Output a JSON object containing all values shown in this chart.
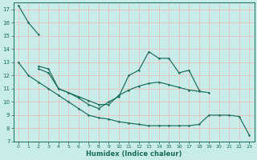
{
  "xlabel": "Humidex (Indice chaleur)",
  "background_color": "#c8ece8",
  "grid_color": "#f0b8b8",
  "line_color": "#1a6b5a",
  "xlim_min": -0.5,
  "xlim_max": 23.5,
  "ylim_min": 7,
  "ylim_max": 17.5,
  "yticks": [
    7,
    8,
    9,
    10,
    11,
    12,
    13,
    14,
    15,
    16,
    17
  ],
  "xticks": [
    0,
    1,
    2,
    3,
    4,
    5,
    6,
    7,
    8,
    9,
    10,
    11,
    12,
    13,
    14,
    15,
    16,
    17,
    18,
    19,
    20,
    21,
    22,
    23
  ],
  "series": [
    {
      "x": [
        0,
        1,
        2
      ],
      "y": [
        17.3,
        16.0,
        15.1
      ]
    },
    {
      "x": [
        2,
        3,
        4,
        5,
        6,
        7,
        8,
        9,
        10,
        11,
        12,
        13,
        14,
        15,
        16,
        17,
        18
      ],
      "y": [
        12.7,
        12.5,
        11.0,
        10.7,
        10.3,
        9.8,
        9.5,
        10.0,
        10.4,
        12.0,
        12.4,
        13.8,
        13.3,
        13.3,
        12.2,
        12.4,
        10.9
      ]
    },
    {
      "x": [
        2,
        3,
        4,
        5,
        6,
        7,
        8,
        9,
        10,
        11,
        12,
        13,
        14,
        15,
        16,
        17,
        18,
        19
      ],
      "y": [
        12.5,
        12.2,
        11.0,
        10.7,
        10.4,
        10.1,
        9.8,
        9.8,
        10.5,
        10.9,
        11.2,
        11.4,
        11.5,
        11.3,
        11.1,
        10.9,
        10.8,
        10.7
      ]
    },
    {
      "x": [
        0,
        1,
        2,
        3,
        4,
        5,
        6,
        7,
        8,
        9,
        10,
        11,
        12,
        13,
        14,
        15,
        16,
        17,
        18,
        19,
        20,
        21,
        22,
        23
      ],
      "y": [
        13.0,
        12.0,
        11.5,
        11.0,
        10.5,
        10.0,
        9.5,
        9.0,
        8.8,
        8.7,
        8.5,
        8.4,
        8.3,
        8.2,
        8.2,
        8.2,
        8.2,
        8.2,
        8.3,
        9.0,
        9.0,
        9.0,
        8.9,
        7.5
      ]
    }
  ]
}
